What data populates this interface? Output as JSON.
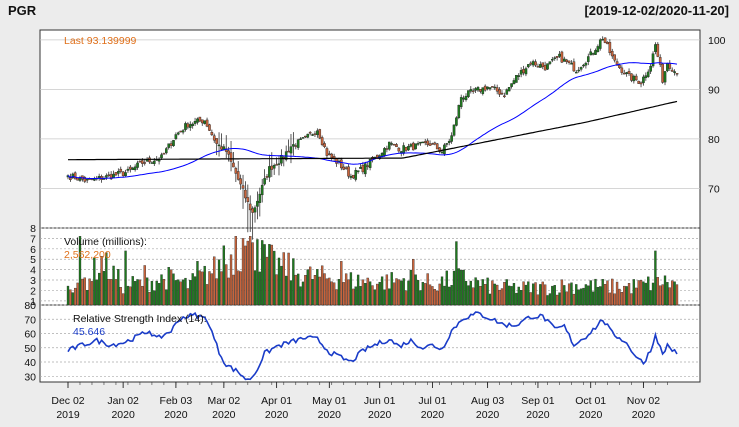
{
  "header": {
    "symbol": "PGR",
    "range": "[2019-12-02/2020-11-20]"
  },
  "chart_data": [
    {
      "type": "candlestick",
      "title": "PGR",
      "annotation": "Last 93.139999",
      "last": 93.139999,
      "ylim": [
        62,
        102
      ],
      "yticks": [
        70,
        80,
        90,
        100
      ],
      "grid": true,
      "overlays": [
        {
          "name": "",
          "color": "#0000ff",
          "kind": "moving-average-50"
        },
        {
          "name": "",
          "color": "#000000",
          "kind": "moving-average-200"
        }
      ],
      "up_color": "#1e7a1e",
      "down_color": "#c8643c",
      "close_anchors": [
        [
          "2019-12-02",
          72.6
        ],
        [
          "2019-12-12",
          71.5
        ],
        [
          "2019-12-23",
          72.2
        ],
        [
          "2020-01-06",
          73.3
        ],
        [
          "2020-01-14",
          75.2
        ],
        [
          "2020-01-24",
          76.2
        ],
        [
          "2020-02-03",
          80.8
        ],
        [
          "2020-02-10",
          83.0
        ],
        [
          "2020-02-19",
          83.8
        ],
        [
          "2020-02-26",
          79.0
        ],
        [
          "2020-03-03",
          77.5
        ],
        [
          "2020-03-09",
          73.0
        ],
        [
          "2020-03-16",
          67.0
        ],
        [
          "2020-03-18",
          65.0
        ],
        [
          "2020-03-23",
          69.0
        ],
        [
          "2020-03-27",
          74.0
        ],
        [
          "2020-04-03",
          76.0
        ],
        [
          "2020-04-09",
          78.5
        ],
        [
          "2020-04-17",
          80.0
        ],
        [
          "2020-04-24",
          82.0
        ],
        [
          "2020-04-30",
          77.0
        ],
        [
          "2020-05-07",
          75.0
        ],
        [
          "2020-05-14",
          72.5
        ],
        [
          "2020-05-21",
          74.0
        ],
        [
          "2020-05-29",
          76.5
        ],
        [
          "2020-06-05",
          79.0
        ],
        [
          "2020-06-12",
          78.0
        ],
        [
          "2020-06-22",
          78.5
        ],
        [
          "2020-06-30",
          79.0
        ],
        [
          "2020-07-07",
          77.5
        ],
        [
          "2020-07-13",
          80.5
        ],
        [
          "2020-07-17",
          88.5
        ],
        [
          "2020-07-24",
          89.5
        ],
        [
          "2020-08-03",
          90.5
        ],
        [
          "2020-08-12",
          89.0
        ],
        [
          "2020-08-19",
          92.5
        ],
        [
          "2020-08-27",
          95.5
        ],
        [
          "2020-09-04",
          94.5
        ],
        [
          "2020-09-14",
          96.5
        ],
        [
          "2020-09-23",
          94.0
        ],
        [
          "2020-10-01",
          97.0
        ],
        [
          "2020-10-08",
          100.5
        ],
        [
          "2020-10-15",
          95.5
        ],
        [
          "2020-10-23",
          92.5
        ],
        [
          "2020-10-30",
          91.5
        ],
        [
          "2020-11-05",
          95.0
        ],
        [
          "2020-11-09",
          99.0
        ],
        [
          "2020-11-12",
          92.0
        ],
        [
          "2020-11-16",
          95.5
        ],
        [
          "2020-11-20",
          93.14
        ]
      ]
    },
    {
      "type": "bar",
      "title": "Volume (millions):",
      "annotation": "2,562,200",
      "last": 2.5622,
      "ylim": [
        0.6,
        8
      ],
      "yticks": [
        1,
        2,
        3,
        4,
        5,
        6,
        7,
        8
      ],
      "grid": true,
      "volume_anchors": [
        [
          "2019-12-02",
          2.6
        ],
        [
          "2019-12-12",
          3.0
        ],
        [
          "2019-12-20",
          4.8
        ],
        [
          "2020-01-02",
          2.5
        ],
        [
          "2020-01-17",
          2.8
        ],
        [
          "2020-01-29",
          3.2
        ],
        [
          "2020-02-10",
          2.5
        ],
        [
          "2020-02-25",
          4.0
        ],
        [
          "2020-03-06",
          5.0
        ],
        [
          "2020-03-13",
          6.0
        ],
        [
          "2020-03-20",
          5.6
        ],
        [
          "2020-04-01",
          4.5
        ],
        [
          "2020-04-15",
          3.5
        ],
        [
          "2020-05-01",
          3.2
        ],
        [
          "2020-05-15",
          2.9
        ],
        [
          "2020-06-01",
          2.8
        ],
        [
          "2020-06-19",
          3.1
        ],
        [
          "2020-07-01",
          2.6
        ],
        [
          "2020-07-17",
          3.2
        ],
        [
          "2020-08-03",
          2.4
        ],
        [
          "2020-08-20",
          2.2
        ],
        [
          "2020-09-08",
          2.3
        ],
        [
          "2020-09-21",
          2.5
        ],
        [
          "2020-10-05",
          2.4
        ],
        [
          "2020-10-21",
          2.3
        ],
        [
          "2020-11-02",
          2.5
        ],
        [
          "2020-11-11",
          2.9
        ],
        [
          "2020-11-20",
          2.56
        ]
      ],
      "spikes": [
        [
          "2019-12-09",
          7.2
        ],
        [
          "2020-01-03",
          5.8
        ],
        [
          "2020-01-15",
          4.4
        ],
        [
          "2020-02-14",
          4.8
        ],
        [
          "2020-03-02",
          6.3
        ],
        [
          "2020-03-09",
          7.2
        ],
        [
          "2020-03-12",
          7.0
        ],
        [
          "2020-03-18",
          6.6
        ],
        [
          "2020-03-20",
          6.9
        ],
        [
          "2020-04-08",
          5.6
        ],
        [
          "2020-05-08",
          4.8
        ],
        [
          "2020-06-19",
          5.0
        ],
        [
          "2020-07-15",
          6.7
        ],
        [
          "2020-11-09",
          5.8
        ]
      ]
    },
    {
      "type": "line",
      "title": "Relative Strength Index (14):",
      "annotation": "45.646",
      "last": 45.646,
      "ylim": [
        26,
        80
      ],
      "yticks": [
        30,
        40,
        50,
        60,
        70,
        80
      ],
      "grid": true,
      "color": "#1a3cc8",
      "rsi_anchors": [
        [
          "2019-12-02",
          48
        ],
        [
          "2019-12-10",
          52
        ],
        [
          "2019-12-18",
          55
        ],
        [
          "2019-12-26",
          52
        ],
        [
          "2020-01-03",
          54
        ],
        [
          "2020-01-10",
          58
        ],
        [
          "2020-01-17",
          62
        ],
        [
          "2020-01-22",
          56
        ],
        [
          "2020-01-30",
          62
        ],
        [
          "2020-02-05",
          71
        ],
        [
          "2020-02-13",
          73
        ],
        [
          "2020-02-20",
          70
        ],
        [
          "2020-02-27",
          47
        ],
        [
          "2020-03-03",
          38
        ],
        [
          "2020-03-10",
          33
        ],
        [
          "2020-03-16",
          27
        ],
        [
          "2020-03-19",
          32
        ],
        [
          "2020-03-25",
          46
        ],
        [
          "2020-04-01",
          51
        ],
        [
          "2020-04-09",
          54
        ],
        [
          "2020-04-17",
          57
        ],
        [
          "2020-04-24",
          56
        ],
        [
          "2020-05-01",
          47
        ],
        [
          "2020-05-08",
          43
        ],
        [
          "2020-05-14",
          40
        ],
        [
          "2020-05-21",
          48
        ],
        [
          "2020-05-28",
          52
        ],
        [
          "2020-06-05",
          56
        ],
        [
          "2020-06-11",
          51
        ],
        [
          "2020-06-18",
          55
        ],
        [
          "2020-06-25",
          50
        ],
        [
          "2020-07-01",
          52
        ],
        [
          "2020-07-07",
          49
        ],
        [
          "2020-07-13",
          62
        ],
        [
          "2020-07-20",
          71
        ],
        [
          "2020-07-28",
          74
        ],
        [
          "2020-08-05",
          70
        ],
        [
          "2020-08-12",
          66
        ],
        [
          "2020-08-19",
          66
        ],
        [
          "2020-08-27",
          72
        ],
        [
          "2020-09-03",
          72
        ],
        [
          "2020-09-10",
          63
        ],
        [
          "2020-09-16",
          65
        ],
        [
          "2020-09-22",
          52
        ],
        [
          "2020-09-29",
          58
        ],
        [
          "2020-10-06",
          66
        ],
        [
          "2020-10-08",
          70
        ],
        [
          "2020-10-14",
          60
        ],
        [
          "2020-10-21",
          55
        ],
        [
          "2020-10-28",
          44
        ],
        [
          "2020-11-02",
          39
        ],
        [
          "2020-11-06",
          52
        ],
        [
          "2020-11-09",
          60
        ],
        [
          "2020-11-12",
          45
        ],
        [
          "2020-11-16",
          52
        ],
        [
          "2020-11-20",
          45.6
        ]
      ]
    }
  ],
  "x_axis": {
    "start": "2019-12-02",
    "end": "2020-11-20",
    "ticks": [
      {
        "date": "2019-12-02",
        "line1": "Dec 02",
        "line2": "2019"
      },
      {
        "date": "2020-01-02",
        "line1": "Jan 02",
        "line2": "2020"
      },
      {
        "date": "2020-02-03",
        "line1": "Feb 03",
        "line2": "2020"
      },
      {
        "date": "2020-03-02",
        "line1": "Mar 02",
        "line2": "2020"
      },
      {
        "date": "2020-04-01",
        "line1": "Apr 01",
        "line2": "2020"
      },
      {
        "date": "2020-05-01",
        "line1": "May 01",
        "line2": "2020"
      },
      {
        "date": "2020-06-01",
        "line1": "Jun 01",
        "line2": "2020"
      },
      {
        "date": "2020-07-01",
        "line1": "Jul 01",
        "line2": "2020"
      },
      {
        "date": "2020-08-03",
        "line1": "Aug 03",
        "line2": "2020"
      },
      {
        "date": "2020-09-01",
        "line1": "Sep 01",
        "line2": "2020"
      },
      {
        "date": "2020-10-01",
        "line1": "Oct 01",
        "line2": "2020"
      },
      {
        "date": "2020-11-02",
        "line1": "Nov 02",
        "line2": "2020"
      }
    ]
  },
  "colors": {
    "background": "#ececec",
    "panel": "#ffffff",
    "annotation_orange": "#e0701a",
    "annotation_blue": "#1a3cc8"
  }
}
